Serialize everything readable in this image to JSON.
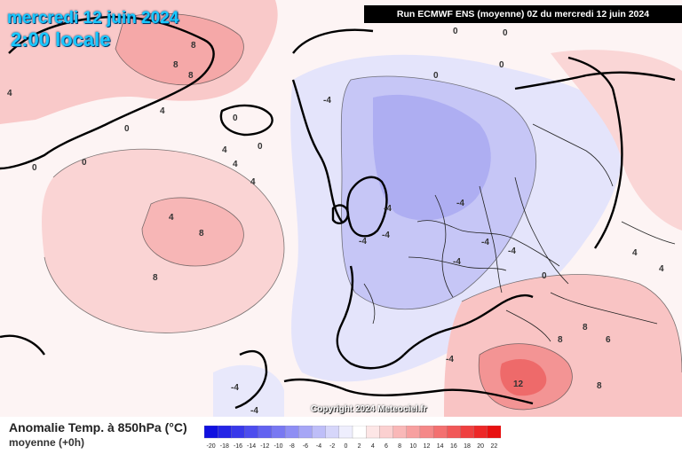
{
  "header": {
    "date": "mercredi 12 juin 2024",
    "time": "2:00 locale",
    "run": "Run ECMWF ENS (moyenne) 0Z du mercredi 12 juin 2024"
  },
  "footer": {
    "variable_title": "Anomalie Temp. à 850hPa (°C)",
    "variable_subtitle": "moyenne   (+0h)",
    "copyright": "Copyright 2024 Meteociel.fr"
  },
  "legend": {
    "ticks": [
      "-20",
      "-18",
      "-16",
      "-14",
      "-12",
      "-10",
      "-8",
      "-6",
      "-4",
      "-2",
      "0",
      "2",
      "4",
      "6",
      "8",
      "10",
      "12",
      "14",
      "16",
      "18",
      "20",
      "22"
    ],
    "colors": [
      "#1010e0",
      "#2424e6",
      "#3838ea",
      "#4c4cee",
      "#6262f0",
      "#7878f2",
      "#8e8ef4",
      "#a6a6f6",
      "#bebef8",
      "#d6d6fa",
      "#eeeefd",
      "#ffffff",
      "#fde6e6",
      "#fbd0d0",
      "#f9b8b8",
      "#f7a0a0",
      "#f58888",
      "#f37070",
      "#f15858",
      "#ef4040",
      "#ed2828",
      "#e81010"
    ]
  },
  "contour_labels": [
    {
      "text": "8"
    },
    {
      "text": "8"
    },
    {
      "text": "8"
    },
    {
      "text": "0"
    },
    {
      "text": "0"
    },
    {
      "text": "0"
    },
    {
      "text": "0"
    },
    {
      "text": "0"
    },
    {
      "text": "4"
    },
    {
      "text": "4"
    },
    {
      "text": "4"
    },
    {
      "text": "4"
    },
    {
      "text": "4"
    },
    {
      "text": "4"
    },
    {
      "text": "8"
    },
    {
      "text": "8"
    },
    {
      "text": "-4"
    },
    {
      "text": "-4"
    },
    {
      "text": "-4"
    },
    {
      "text": "-4"
    },
    {
      "text": "-4"
    },
    {
      "text": "-4"
    },
    {
      "text": "-4"
    },
    {
      "text": "-4"
    },
    {
      "text": "-4"
    },
    {
      "text": "4"
    },
    {
      "text": "8"
    },
    {
      "text": "8"
    },
    {
      "text": "12"
    },
    {
      "text": "8"
    },
    {
      "text": "6"
    },
    {
      "text": "4"
    },
    {
      "text": "0"
    },
    {
      "text": "0"
    },
    {
      "text": "0"
    },
    {
      "text": "0"
    },
    {
      "text": "0"
    },
    {
      "text": "-4"
    },
    {
      "text": "-4"
    }
  ]
}
